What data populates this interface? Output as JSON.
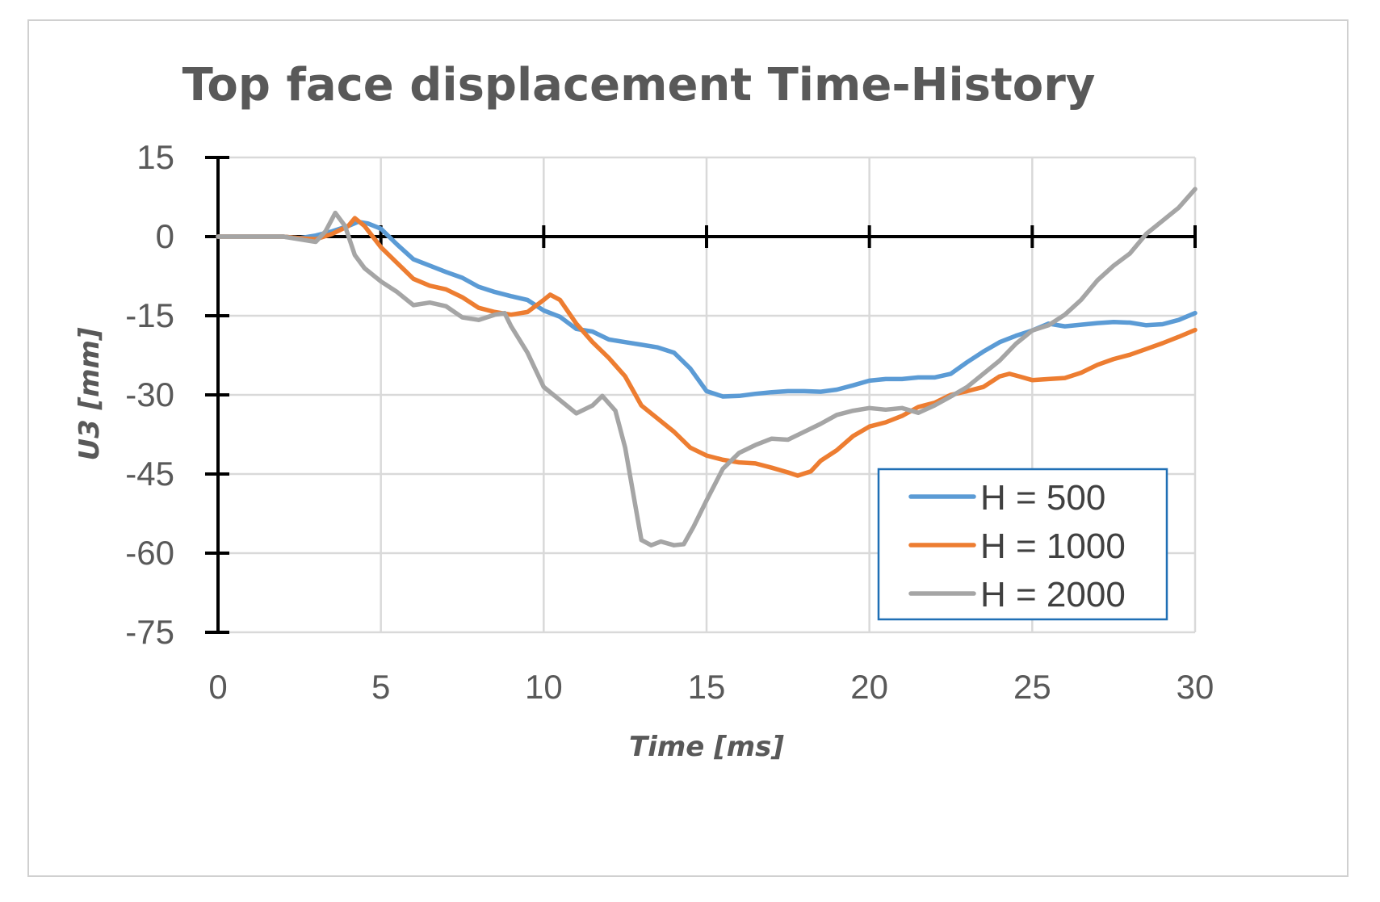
{
  "chart_data": {
    "type": "line",
    "title": "Top face displacement Time-History",
    "xlabel": "Time [ms]",
    "ylabel": "U3 [mm]",
    "xlim": [
      0,
      30
    ],
    "ylim": [
      -75,
      15
    ],
    "xticks": [
      0,
      5,
      10,
      15,
      20,
      25,
      30
    ],
    "yticks": [
      15,
      0,
      -15,
      -30,
      -45,
      -60,
      -75
    ],
    "grid": true,
    "legend_position": "bottom-right",
    "series": [
      {
        "name": "H = 500",
        "color": "#5B9BD5",
        "x": [
          0,
          1,
          2,
          2.5,
          3,
          3.5,
          4,
          4.3,
          4.6,
          5,
          5.5,
          6,
          6.5,
          7,
          7.5,
          8,
          8.5,
          9,
          9.5,
          10,
          10.5,
          11,
          11.5,
          12,
          12.5,
          13,
          13.5,
          14,
          14.5,
          15,
          15.5,
          16,
          16.5,
          17,
          17.5,
          18,
          18.5,
          19,
          19.5,
          20,
          20.5,
          21,
          21.5,
          22,
          22.5,
          23,
          23.5,
          24,
          24.5,
          25,
          25.5,
          26,
          26.5,
          27,
          27.5,
          28,
          28.5,
          29,
          29.5,
          30
        ],
        "y": [
          0,
          0,
          0,
          -0.3,
          0.2,
          1.0,
          2.0,
          2.8,
          2.5,
          1.5,
          -1.5,
          -4.3,
          -5.5,
          -6.7,
          -7.8,
          -9.5,
          -10.5,
          -11.3,
          -12.0,
          -14.0,
          -15.2,
          -17.5,
          -18.0,
          -19.5,
          -20.0,
          -20.5,
          -21.0,
          -22.0,
          -25.0,
          -29.3,
          -30.3,
          -30.2,
          -29.8,
          -29.5,
          -29.3,
          -29.3,
          -29.4,
          -29.0,
          -28.2,
          -27.3,
          -27.0,
          -27.0,
          -26.7,
          -26.7,
          -26.0,
          -23.8,
          -21.8,
          -20.0,
          -18.8,
          -17.8,
          -16.5,
          -17.0,
          -16.7,
          -16.4,
          -16.2,
          -16.3,
          -16.8,
          -16.6,
          -15.8,
          -14.5
        ]
      },
      {
        "name": "H = 1000",
        "color": "#ED7D31",
        "x": [
          0,
          1,
          2,
          2.5,
          3,
          3.5,
          4,
          4.2,
          4.5,
          5,
          5.5,
          6,
          6.5,
          7,
          7.5,
          8,
          8.5,
          9,
          9.5,
          10,
          10.2,
          10.5,
          11,
          11.5,
          12,
          12.5,
          13,
          13.5,
          14,
          14.5,
          15,
          15.5,
          16,
          16.5,
          17,
          17.5,
          17.8,
          18.2,
          18.5,
          19,
          19.5,
          20,
          20.5,
          21,
          21.5,
          22,
          22.5,
          23,
          23.5,
          24,
          24.3,
          24.6,
          25,
          25.5,
          26,
          26.5,
          27,
          27.5,
          28,
          28.5,
          29,
          29.5,
          30
        ],
        "y": [
          0,
          0,
          0,
          -0.3,
          -0.5,
          0.5,
          2.0,
          3.5,
          2.0,
          -2.0,
          -5.0,
          -8.0,
          -9.3,
          -10.0,
          -11.5,
          -13.5,
          -14.3,
          -14.8,
          -14.3,
          -12.0,
          -11.0,
          -12.0,
          -16.5,
          -20.0,
          -23.0,
          -26.5,
          -32.0,
          -34.5,
          -37.0,
          -40.0,
          -41.5,
          -42.3,
          -42.8,
          -43.0,
          -43.8,
          -44.7,
          -45.3,
          -44.5,
          -42.5,
          -40.5,
          -37.8,
          -36.0,
          -35.2,
          -34.0,
          -32.3,
          -31.5,
          -30.0,
          -29.3,
          -28.5,
          -26.5,
          -26.0,
          -26.5,
          -27.2,
          -27.0,
          -26.8,
          -25.8,
          -24.3,
          -23.2,
          -22.4,
          -21.3,
          -20.2,
          -19.0,
          -17.7
        ]
      },
      {
        "name": "H = 2000",
        "color": "#A5A5A5",
        "x": [
          0,
          1,
          2,
          2.5,
          3,
          3.3,
          3.6,
          3.9,
          4.2,
          4.5,
          5,
          5.5,
          6,
          6.5,
          7,
          7.5,
          8,
          8.5,
          8.8,
          9,
          9.5,
          10,
          10.5,
          11,
          11.5,
          11.8,
          12.2,
          12.5,
          13,
          13.3,
          13.6,
          14,
          14.3,
          14.6,
          15,
          15.5,
          16,
          16.5,
          17,
          17.5,
          18,
          18.5,
          19,
          19.5,
          20,
          20.5,
          21,
          21.5,
          22,
          22.5,
          23,
          23.5,
          24,
          24.5,
          25,
          25.5,
          26,
          26.5,
          27,
          27.5,
          28,
          28.5,
          29,
          29.5,
          30
        ],
        "y": [
          0,
          0,
          0,
          -0.5,
          -1.0,
          1.0,
          4.5,
          2.0,
          -3.5,
          -6.0,
          -8.5,
          -10.5,
          -13.0,
          -12.5,
          -13.2,
          -15.3,
          -15.8,
          -14.8,
          -14.5,
          -17.0,
          -22.0,
          -28.5,
          -31.0,
          -33.5,
          -32.0,
          -30.2,
          -33.0,
          -40.0,
          -57.5,
          -58.5,
          -57.8,
          -58.5,
          -58.3,
          -55.0,
          -50.0,
          -44.0,
          -41.0,
          -39.5,
          -38.3,
          -38.5,
          -37.0,
          -35.5,
          -33.8,
          -33.0,
          -32.5,
          -32.8,
          -32.5,
          -33.4,
          -32.0,
          -30.3,
          -28.5,
          -26.0,
          -23.5,
          -20.3,
          -17.8,
          -16.8,
          -14.8,
          -12.0,
          -8.3,
          -5.5,
          -3.2,
          0.5,
          3.0,
          5.5,
          9.0
        ]
      }
    ]
  }
}
